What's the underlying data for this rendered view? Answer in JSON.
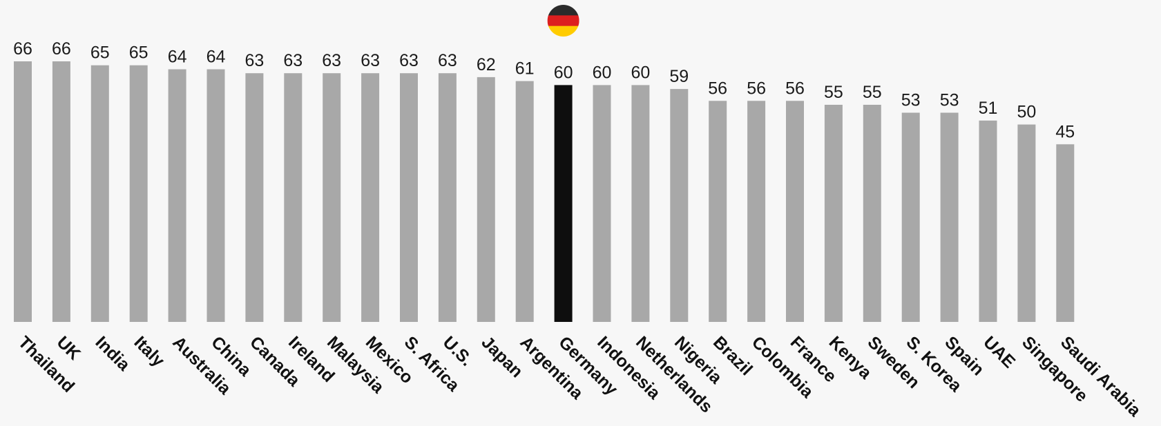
{
  "chart_data": {
    "type": "bar",
    "categories": [
      "Thailand",
      "UK",
      "India",
      "Italy",
      "Australia",
      "China",
      "Canada",
      "Ireland",
      "Malaysia",
      "Mexico",
      "S. Africa",
      "U.S.",
      "Japan",
      "Argentina",
      "Germany",
      "Indonesia",
      "Netherlands",
      "Nigeria",
      "Brazil",
      "Colombia",
      "France",
      "Kenya",
      "Sweden",
      "S. Korea",
      "Spain",
      "UAE",
      "Singapore",
      "Saudi Arabia"
    ],
    "values": [
      66,
      66,
      65,
      65,
      64,
      64,
      63,
      63,
      63,
      63,
      63,
      63,
      62,
      61,
      60,
      60,
      60,
      59,
      56,
      56,
      56,
      55,
      55,
      53,
      53,
      51,
      50,
      45
    ],
    "highlight": "Germany",
    "highlight_icon": "germany-flag-icon",
    "ylim": [
      0,
      66
    ],
    "grid": false,
    "colors": {
      "bar": "#a8a8a8",
      "highlight_bar": "#0e0e0e",
      "flag": [
        "#2b2b2b",
        "#dd1f1f",
        "#ffcc00"
      ]
    }
  }
}
